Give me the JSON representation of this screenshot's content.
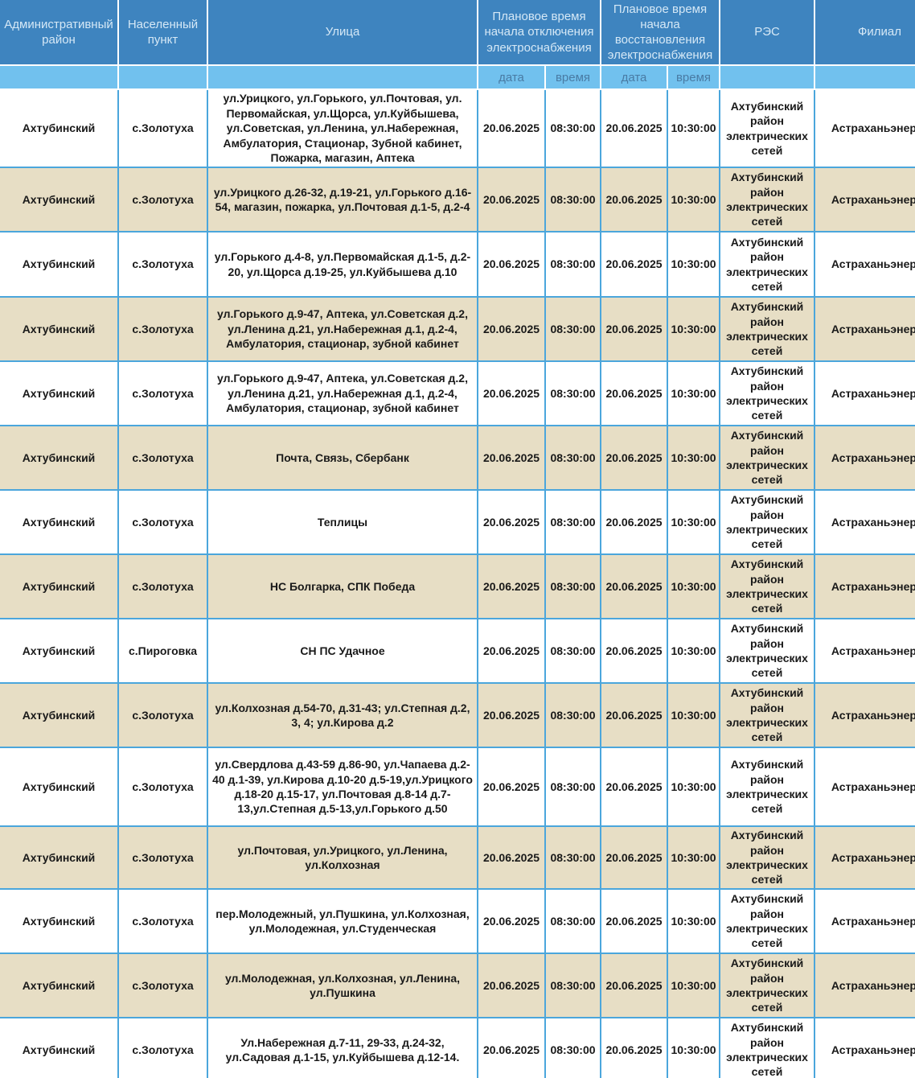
{
  "colors": {
    "header_bg": "#3e84bf",
    "subheader_bg": "#71c1ee",
    "border_blue": "#4ba6dc",
    "row_shaded_bg": "#e7dec5",
    "row_plain_bg": "#ffffff",
    "cell_text": "#191919",
    "header_text": "#d5e8f6",
    "subheader_text": "#497ba4"
  },
  "table": {
    "headers": {
      "admin_district": "Административный район",
      "settlement": "Населенный пункт",
      "street": "Улица",
      "outage_start": "Плановое время начала отключения электроснабжения",
      "restore_start": "Плановое время начала восстановления электроснабжения",
      "res": "РЭС",
      "branch": "Филиал",
      "sub_date": "дата",
      "sub_time": "время"
    },
    "rows": [
      {
        "district": "Ахтубинский",
        "settlement": "с.Золотуха",
        "street": "ул.Урицкого, ул.Горького, ул.Почтовая, ул. Первомайская, ул.Щорса, ул.Куйбышева, ул.Советская, ул.Ленина, ул.Набережная, Амбулатория, Стационар, Зубной кабинет, Пожарка, магазин, Аптека",
        "off_date": "20.06.2025",
        "off_time": "08:30:00",
        "on_date": "20.06.2025",
        "on_time": "10:30:00",
        "res": "Ахтубинский район электрических сетей",
        "branch": "Астраханьэнерго",
        "shaded": false
      },
      {
        "district": "Ахтубинский",
        "settlement": "с.Золотуха",
        "street": "ул.Урицкого д.26-32, д.19-21, ул.Горького д.16-54, магазин, пожарка, ул.Почтовая д.1-5, д.2-4",
        "off_date": "20.06.2025",
        "off_time": "08:30:00",
        "on_date": "20.06.2025",
        "on_time": "10:30:00",
        "res": "Ахтубинский район электрических сетей",
        "branch": "Астраханьэнерго",
        "shaded": true
      },
      {
        "district": "Ахтубинский",
        "settlement": "с.Золотуха",
        "street": "ул.Горького д.4-8, ул.Первомайская д.1-5, д.2-20, ул.Щорса д.19-25, ул.Куйбышева д.10",
        "off_date": "20.06.2025",
        "off_time": "08:30:00",
        "on_date": "20.06.2025",
        "on_time": "10:30:00",
        "res": "Ахтубинский район электрических сетей",
        "branch": "Астраханьэнерго",
        "shaded": false
      },
      {
        "district": "Ахтубинский",
        "settlement": "с.Золотуха",
        "street": "ул.Горького д.9-47, Аптека, ул.Советская д.2, ул.Ленина д.21, ул.Набережная д.1, д.2-4, Амбулатория, стационар, зубной кабинет",
        "off_date": "20.06.2025",
        "off_time": "08:30:00",
        "on_date": "20.06.2025",
        "on_time": "10:30:00",
        "res": "Ахтубинский район электрических сетей",
        "branch": "Астраханьэнерго",
        "shaded": true
      },
      {
        "district": "Ахтубинский",
        "settlement": "с.Золотуха",
        "street": "ул.Горького д.9-47, Аптека, ул.Советская д.2, ул.Ленина д.21, ул.Набережная д.1, д.2-4, Амбулатория, стационар, зубной кабинет",
        "off_date": "20.06.2025",
        "off_time": "08:30:00",
        "on_date": "20.06.2025",
        "on_time": "10:30:00",
        "res": "Ахтубинский район электрических сетей",
        "branch": "Астраханьэнерго",
        "shaded": false
      },
      {
        "district": "Ахтубинский",
        "settlement": "с.Золотуха",
        "street": "Почта, Связь, Сбербанк",
        "off_date": "20.06.2025",
        "off_time": "08:30:00",
        "on_date": "20.06.2025",
        "on_time": "10:30:00",
        "res": "Ахтубинский район электрических сетей",
        "branch": "Астраханьэнерго",
        "shaded": true
      },
      {
        "district": "Ахтубинский",
        "settlement": "с.Золотуха",
        "street": "Теплицы",
        "off_date": "20.06.2025",
        "off_time": "08:30:00",
        "on_date": "20.06.2025",
        "on_time": "10:30:00",
        "res": "Ахтубинский район электрических сетей",
        "branch": "Астраханьэнерго",
        "shaded": false
      },
      {
        "district": "Ахтубинский",
        "settlement": "с.Золотуха",
        "street": "НС Болгарка, СПК Победа",
        "off_date": "20.06.2025",
        "off_time": "08:30:00",
        "on_date": "20.06.2025",
        "on_time": "10:30:00",
        "res": "Ахтубинский район электрических сетей",
        "branch": "Астраханьэнерго",
        "shaded": true
      },
      {
        "district": "Ахтубинский",
        "settlement": "с.Пироговка",
        "street": "СН ПС Удачное",
        "off_date": "20.06.2025",
        "off_time": "08:30:00",
        "on_date": "20.06.2025",
        "on_time": "10:30:00",
        "res": "Ахтубинский район электрических сетей",
        "branch": "Астраханьэнерго",
        "shaded": false
      },
      {
        "district": "Ахтубинский",
        "settlement": "с.Золотуха",
        "street": "ул.Колхозная д.54-70, д.31-43; ул.Степная д.2, 3, 4; ул.Кирова д.2",
        "off_date": "20.06.2025",
        "off_time": "08:30:00",
        "on_date": "20.06.2025",
        "on_time": "10:30:00",
        "res": "Ахтубинский район электрических сетей",
        "branch": "Астраханьэнерго",
        "shaded": true
      },
      {
        "district": "Ахтубинский",
        "settlement": "с.Золотуха",
        "street": "ул.Свердлова д.43-59 д.86-90, ул.Чапаева д.2-40 д.1-39, ул.Кирова д.10-20 д.5-19,ул.Урицкого д.18-20 д.15-17, ул.Почтовая д.8-14 д.7-13,ул.Степная д.5-13,ул.Горького д.50",
        "off_date": "20.06.2025",
        "off_time": "08:30:00",
        "on_date": "20.06.2025",
        "on_time": "10:30:00",
        "res": "Ахтубинский район электрических сетей",
        "branch": "Астраханьэнерго",
        "shaded": false
      },
      {
        "district": "Ахтубинский",
        "settlement": "с.Золотуха",
        "street": "ул.Почтовая, ул.Урицкого, ул.Ленина, ул.Колхозная",
        "off_date": "20.06.2025",
        "off_time": "08:30:00",
        "on_date": "20.06.2025",
        "on_time": "10:30:00",
        "res": "Ахтубинский район электрических сетей",
        "branch": "Астраханьэнерго",
        "shaded": true
      },
      {
        "district": "Ахтубинский",
        "settlement": "с.Золотуха",
        "street": "пер.Молодежный, ул.Пушкина, ул.Колхозная, ул.Молодежная, ул.Студенческая",
        "off_date": "20.06.2025",
        "off_time": "08:30:00",
        "on_date": "20.06.2025",
        "on_time": "10:30:00",
        "res": "Ахтубинский район электрических сетей",
        "branch": "Астраханьэнерго",
        "shaded": false
      },
      {
        "district": "Ахтубинский",
        "settlement": "с.Золотуха",
        "street": "ул.Молодежная, ул.Колхозная, ул.Ленина, ул.Пушкина",
        "off_date": "20.06.2025",
        "off_time": "08:30:00",
        "on_date": "20.06.2025",
        "on_time": "10:30:00",
        "res": "Ахтубинский район электрических сетей",
        "branch": "Астраханьэнерго",
        "shaded": true
      },
      {
        "district": "Ахтубинский",
        "settlement": "с.Золотуха",
        "street": "Ул.Набережная д.7-11, 29-33, д.24-32, ул.Садовая д.1-15, ул.Куйбышева д.12-14.",
        "off_date": "20.06.2025",
        "off_time": "08:30:00",
        "on_date": "20.06.2025",
        "on_time": "10:30:00",
        "res": "Ахтубинский район электрических сетей",
        "branch": "Астраханьэнерго",
        "shaded": false
      }
    ]
  }
}
